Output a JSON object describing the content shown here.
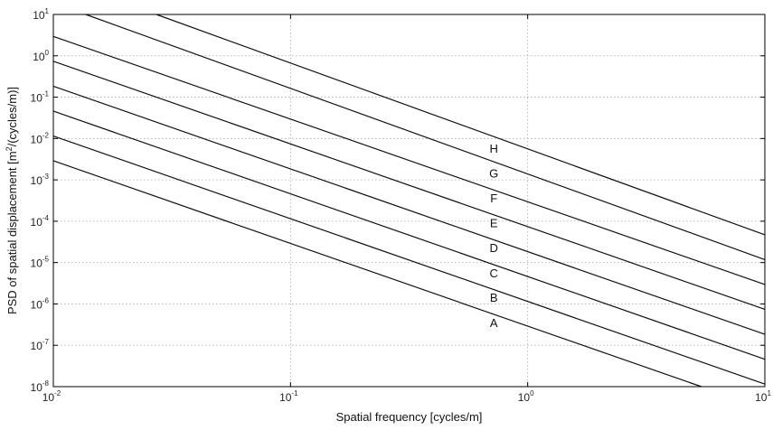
{
  "chart_data": {
    "type": "line",
    "xscale": "log",
    "yscale": "log",
    "xlim": [
      0.01,
      10
    ],
    "ylim": [
      1e-08,
      10
    ],
    "xlabel": "Spatial frequency [cycles/m]",
    "ylabel_parts": {
      "before": "PSD of spatial displacement [m",
      "sup": "2",
      "after": "/(cycles/m)]"
    },
    "grid": true,
    "x_ticks": [
      {
        "value": 0.01,
        "base": "10",
        "exp": "-2"
      },
      {
        "value": 0.1,
        "base": "10",
        "exp": "-1"
      },
      {
        "value": 1,
        "base": "10",
        "exp": "0"
      },
      {
        "value": 10,
        "base": "10",
        "exp": "1"
      }
    ],
    "y_ticks": [
      {
        "value": 1e-08,
        "base": "10",
        "exp": "-8"
      },
      {
        "value": 1e-07,
        "base": "10",
        "exp": "-7"
      },
      {
        "value": 1e-06,
        "base": "10",
        "exp": "-6"
      },
      {
        "value": 1e-05,
        "base": "10",
        "exp": "-5"
      },
      {
        "value": 0.0001,
        "base": "10",
        "exp": "-4"
      },
      {
        "value": 0.001,
        "base": "10",
        "exp": "-3"
      },
      {
        "value": 0.01,
        "base": "10",
        "exp": "-2"
      },
      {
        "value": 0.1,
        "base": "10",
        "exp": "-1"
      },
      {
        "value": 1,
        "base": "10",
        "exp": "0"
      },
      {
        "value": 10,
        "base": "10",
        "exp": "1"
      }
    ],
    "series": [
      {
        "name": "A",
        "points": [
          [
            0.01,
            0.0029
          ],
          [
            5.4,
            1e-08
          ]
        ],
        "label_at": [
          0.72,
          3.6e-07
        ]
      },
      {
        "name": "B",
        "points": [
          [
            0.01,
            0.0115
          ],
          [
            10,
            1.15e-08
          ]
        ],
        "label_at": [
          0.72,
          1.45e-06
        ]
      },
      {
        "name": "C",
        "points": [
          [
            0.01,
            0.046
          ],
          [
            10,
            4.6e-08
          ]
        ],
        "label_at": [
          0.72,
          5.7e-06
        ]
      },
      {
        "name": "D",
        "points": [
          [
            0.01,
            0.184
          ],
          [
            10,
            1.84e-07
          ]
        ],
        "label_at": [
          0.72,
          2.3e-05
        ]
      },
      {
        "name": "E",
        "points": [
          [
            0.01,
            0.74
          ],
          [
            10,
            7.4e-07
          ]
        ],
        "label_at": [
          0.72,
          9.2e-05
        ]
      },
      {
        "name": "F",
        "points": [
          [
            0.01,
            2.95
          ],
          [
            10,
            2.95e-06
          ]
        ],
        "label_at": [
          0.72,
          0.00037
        ]
      },
      {
        "name": "G",
        "points": [
          [
            0.0137,
            10
          ],
          [
            10,
            1.18e-05
          ]
        ],
        "label_at": [
          0.72,
          0.00147
        ]
      },
      {
        "name": "H",
        "points": [
          [
            0.0272,
            10
          ],
          [
            10,
            4.7e-05
          ]
        ],
        "label_at": [
          0.72,
          0.0059
        ]
      }
    ]
  }
}
